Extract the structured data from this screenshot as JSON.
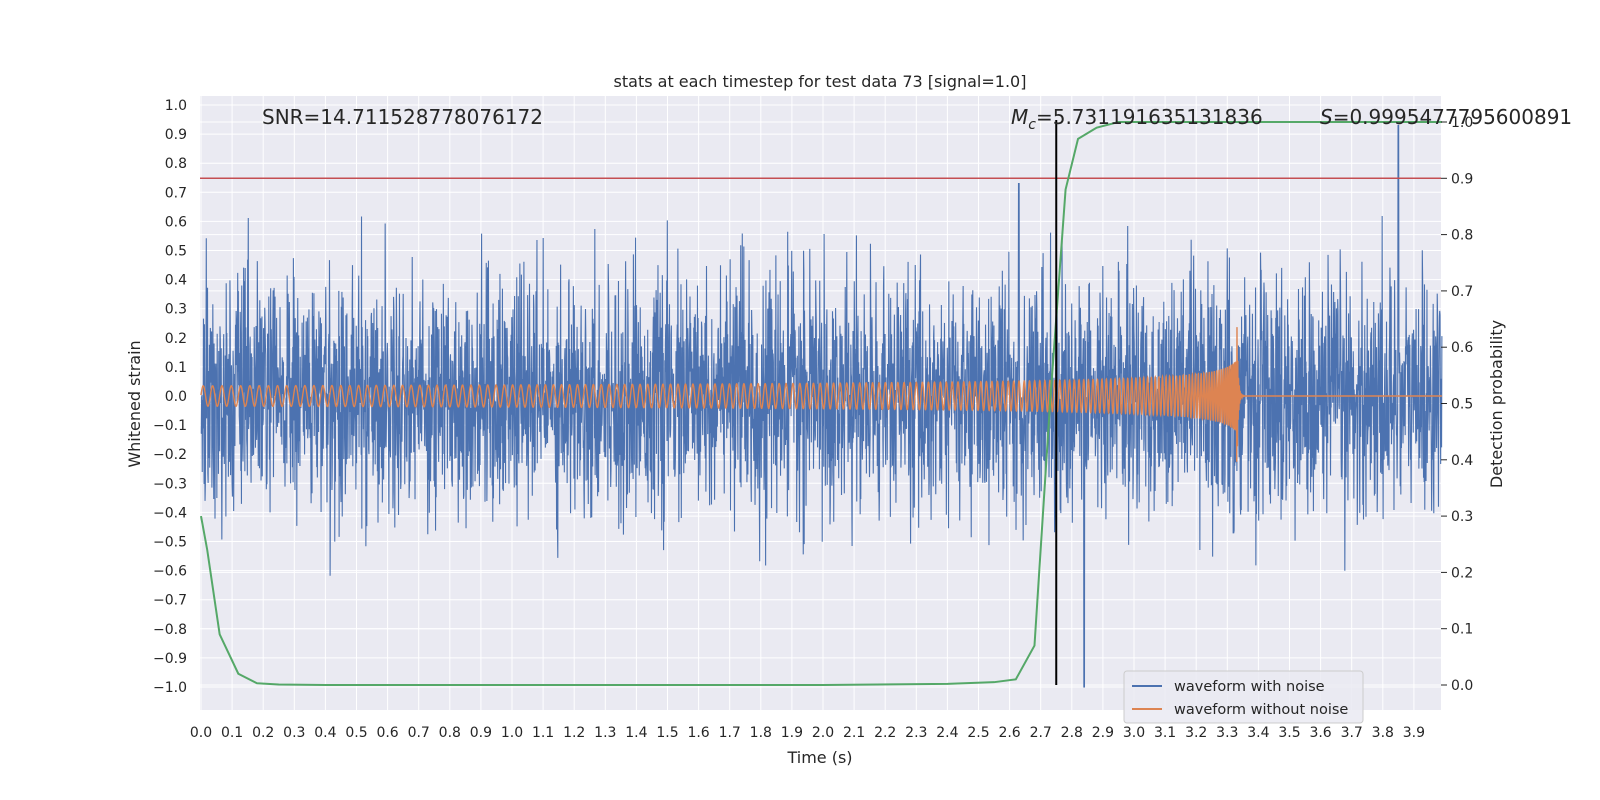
{
  "chart_data": {
    "type": "line",
    "title": "stats at each timestep for test data 73 [signal=1.0]",
    "xlabel": "Time (s)",
    "ylabel": "Whitened strain",
    "y2label": "Detection probability",
    "xlim": [
      0.0,
      3.99
    ],
    "ylim": [
      -1.1,
      1.02
    ],
    "y2lim": [
      -0.05,
      1.02
    ],
    "xticks": [
      "0.0",
      "0.1",
      "0.2",
      "0.3",
      "0.4",
      "0.5",
      "0.6",
      "0.7",
      "0.8",
      "0.9",
      "1.0",
      "1.1",
      "1.2",
      "1.3",
      "1.4",
      "1.5",
      "1.6",
      "1.7",
      "1.8",
      "1.9",
      "2.0",
      "2.1",
      "2.2",
      "2.3",
      "2.4",
      "2.5",
      "2.6",
      "2.7",
      "2.8",
      "2.9",
      "3.0",
      "3.1",
      "3.2",
      "3.3",
      "3.4",
      "3.5",
      "3.6",
      "3.7",
      "3.8",
      "3.9"
    ],
    "yticks": [
      "1.0",
      "0.9",
      "0.8",
      "0.7",
      "0.6",
      "0.5",
      "0.4",
      "0.3",
      "0.2",
      "0.1",
      "0.0",
      "−0.1",
      "−0.2",
      "−0.3",
      "−0.4",
      "−0.5",
      "−0.6",
      "−0.7",
      "−0.8",
      "−0.9",
      "−1.0"
    ],
    "y2ticks": [
      "1.0",
      "0.9",
      "0.8",
      "0.7",
      "0.6",
      "0.5",
      "0.4",
      "0.3",
      "0.2",
      "0.1",
      "0.0"
    ],
    "grid": true,
    "legend_position": "lower-right",
    "annotations": {
      "snr_text": "SNR=14.711528778076172",
      "mc_symbol": "M",
      "mc_subscript": "c",
      "mc_value": "=5.731191635131836",
      "s_symbol": "S",
      "s_value": "=0.9995477795600891"
    },
    "threshold_probability": 0.9,
    "event_time": 2.75,
    "series": [
      {
        "name": "waveform with noise",
        "color": "#4c72b0",
        "description_axis": "left",
        "noise_std": 0.2,
        "notable_peaks": [
          [
            0.02,
            0.37
          ],
          [
            2.63,
            0.73
          ],
          [
            2.84,
            -1.0
          ],
          [
            3.85,
            0.93
          ],
          [
            3.32,
            -0.47
          ]
        ]
      },
      {
        "name": "waveform without noise",
        "color": "#dd8452",
        "description_axis": "left",
        "chirp_start_amplitude": 0.035,
        "chirp_merger_time": 3.33,
        "chirp_peak_amplitude": 0.32,
        "merger_end_time": 3.34
      },
      {
        "color": "#55a868",
        "description_axis": "right",
        "x": [
          0.0,
          0.02,
          0.06,
          0.12,
          0.18,
          0.25,
          0.4,
          1.0,
          2.0,
          2.4,
          2.55,
          2.62,
          2.68,
          2.73,
          2.78,
          2.82,
          2.88,
          2.95,
          3.5,
          3.99
        ],
        "y": [
          0.3,
          0.24,
          0.09,
          0.02,
          0.003,
          0.001,
          0.0,
          0.0,
          0.0,
          0.002,
          0.005,
          0.01,
          0.07,
          0.5,
          0.88,
          0.97,
          0.99,
          1.0,
          1.0,
          1.0
        ]
      }
    ],
    "legend": [
      "waveform with noise",
      "waveform without noise"
    ],
    "colors": {
      "background": "#eaeaf2",
      "grid": "#ffffff",
      "threshold_line": "#c44e52",
      "event_line": "#000000"
    }
  }
}
